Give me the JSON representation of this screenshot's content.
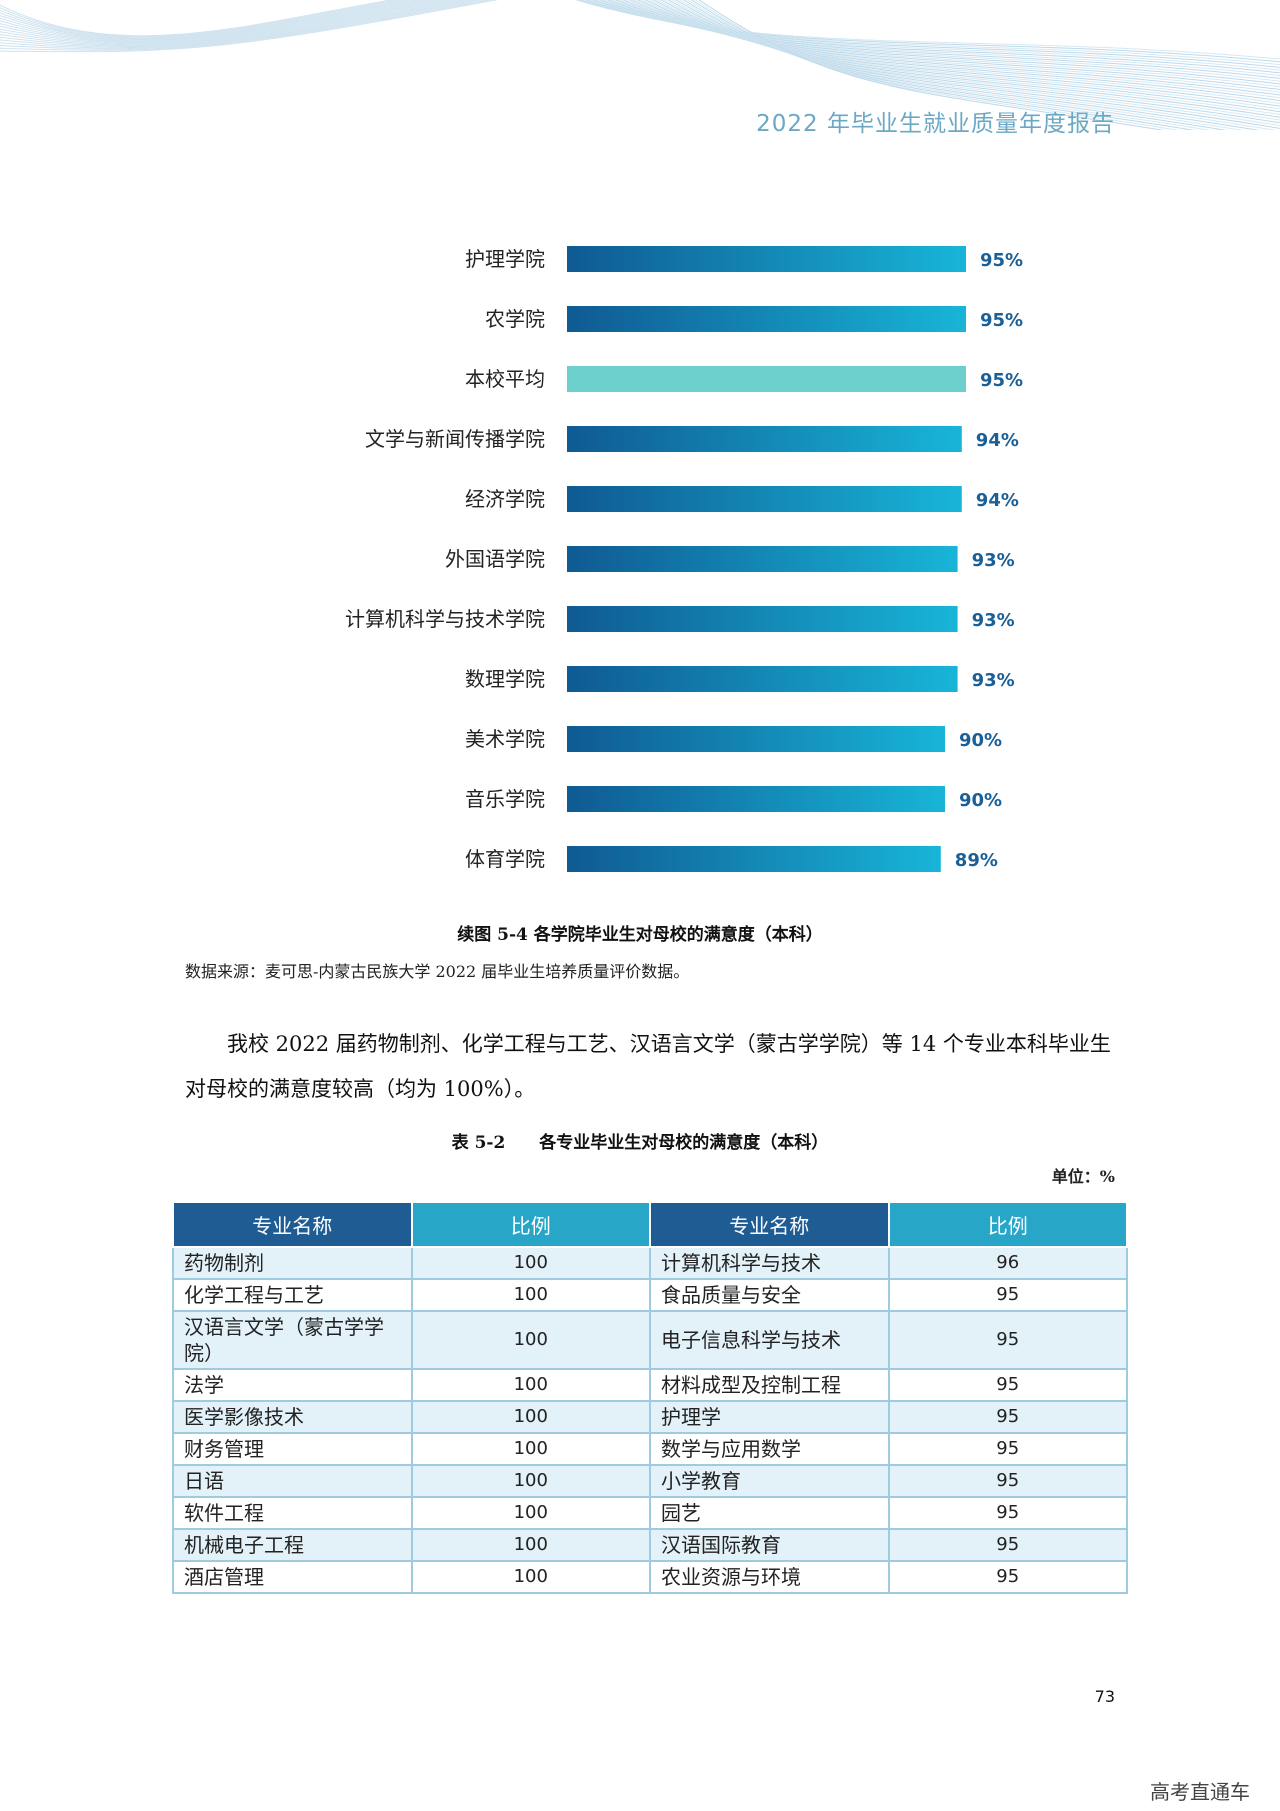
{
  "header": {
    "title": "2022 年毕业生就业质量年度报告"
  },
  "chart_data": {
    "type": "bar",
    "orientation": "horizontal",
    "title": "续图 5-4 各学院毕业生对母校的满意度（本科）",
    "categories": [
      "护理学院",
      "农学院",
      "本校平均",
      "文学与新闻传播学院",
      "经济学院",
      "外国语学院",
      "计算机科学与技术学院",
      "数理学院",
      "美术学院",
      "音乐学院",
      "体育学院"
    ],
    "values": [
      95,
      95,
      95,
      94,
      94,
      93,
      93,
      93,
      90,
      90,
      89
    ],
    "value_labels": [
      "95%",
      "95%",
      "95%",
      "94%",
      "94%",
      "93%",
      "93%",
      "93%",
      "90%",
      "90%",
      "89%"
    ],
    "highlight_category": "本校平均",
    "xlim": [
      0,
      100
    ],
    "colors": {
      "gradient_start": "#0f5a92",
      "gradient_end": "#18b5d8",
      "highlight": "#6ccfcc",
      "label": "#1a5f96"
    }
  },
  "figure": {
    "caption": "续图 5-4 各学院毕业生对母校的满意度（本科）",
    "source": "数据来源：麦可思-内蒙古民族大学 2022 届毕业生培养质量评价数据。"
  },
  "paragraph": "我校 2022 届药物制剂、化学工程与工艺、汉语言文学（蒙古学学院）等 14 个专业本科毕业生对母校的满意度较高（均为 100%）。",
  "table": {
    "caption": "表 5-2　　各专业毕业生对母校的满意度（本科）",
    "unit": "单位：%",
    "headers": [
      "专业名称",
      "比例",
      "专业名称",
      "比例"
    ],
    "rows": [
      {
        "major1": "药物制剂",
        "value1": "100",
        "major2": "计算机科学与技术",
        "value2": "96"
      },
      {
        "major1": "化学工程与工艺",
        "value1": "100",
        "major2": "食品质量与安全",
        "value2": "95"
      },
      {
        "major1": "汉语言文学（蒙古学学院）",
        "value1": "100",
        "major2": "电子信息科学与技术",
        "value2": "95"
      },
      {
        "major1": "法学",
        "value1": "100",
        "major2": "材料成型及控制工程",
        "value2": "95"
      },
      {
        "major1": "医学影像技术",
        "value1": "100",
        "major2": "护理学",
        "value2": "95"
      },
      {
        "major1": "财务管理",
        "value1": "100",
        "major2": "数学与应用数学",
        "value2": "95"
      },
      {
        "major1": "日语",
        "value1": "100",
        "major2": "小学教育",
        "value2": "95"
      },
      {
        "major1": "软件工程",
        "value1": "100",
        "major2": "园艺",
        "value2": "95"
      },
      {
        "major1": "机械电子工程",
        "value1": "100",
        "major2": "汉语国际教育",
        "value2": "95"
      },
      {
        "major1": "酒店管理",
        "value1": "100",
        "major2": "农业资源与环境",
        "value2": "95"
      }
    ]
  },
  "footer": {
    "page_number": "73",
    "watermark": "高考直通车"
  }
}
